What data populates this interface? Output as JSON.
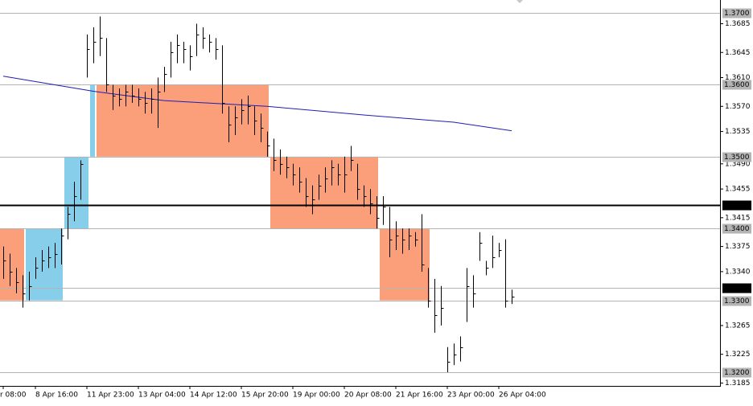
{
  "chart_data": {
    "type": "ohlc",
    "color": "#000000",
    "ylim": [
      1.3181,
      1.3718
    ],
    "yticks": [
      {
        "value": 1.3685,
        "label": "1.3685"
      },
      {
        "value": 1.3645,
        "label": "1.3645"
      },
      {
        "value": 1.361,
        "label": "1.3610"
      },
      {
        "value": 1.357,
        "label": "1.3570"
      },
      {
        "value": 1.3535,
        "label": "1.3535"
      },
      {
        "value": 1.349,
        "label": "1.3490"
      },
      {
        "value": 1.3455,
        "label": "1.3455"
      },
      {
        "value": 1.3415,
        "label": "1.3415"
      },
      {
        "value": 1.3375,
        "label": "1.3375"
      },
      {
        "value": 1.334,
        "label": "1.3340"
      },
      {
        "value": 1.3265,
        "label": "1.3265"
      },
      {
        "value": 1.3225,
        "label": "1.3225"
      },
      {
        "value": 1.3185,
        "label": "1.3185"
      }
    ],
    "levels": [
      {
        "value": 1.37,
        "label": "1.3700",
        "color": "#b4b4b4"
      },
      {
        "value": 1.36,
        "label": "1.3600",
        "color": "#b4b4b4"
      },
      {
        "value": 1.35,
        "label": "1.3500",
        "color": "#b4b4b4"
      },
      {
        "value": 1.34,
        "label": "1.3400",
        "color": "#b4b4b4"
      },
      {
        "value": 1.33,
        "label": "1.3300",
        "color": "#b4b4b4"
      },
      {
        "value": 1.32,
        "label": "1.3200",
        "color": "#b4b4b4"
      },
      {
        "value": 1.3318,
        "label": "1.3318",
        "color": "#000000"
      },
      {
        "value": 1.3433,
        "label": "1.3433",
        "color": "#000000"
      }
    ],
    "zones": [
      {
        "start": 0,
        "end": 4,
        "high": 1.34,
        "low": 1.33,
        "color": "#fa9f7a"
      },
      {
        "start": 4,
        "end": 10,
        "high": 1.34,
        "low": 1.33,
        "color": "#87ceeb"
      },
      {
        "start": 10,
        "end": 14,
        "high": 1.35,
        "low": 1.34,
        "color": "#87ceeb"
      },
      {
        "start": 14,
        "end": 15,
        "high": 1.36,
        "low": 1.35,
        "color": "#87ceeb"
      },
      {
        "start": 15,
        "end": 42,
        "high": 1.36,
        "low": 1.35,
        "color": "#fa9f7a"
      },
      {
        "start": 42,
        "end": 59,
        "high": 1.35,
        "low": 1.34,
        "color": "#fa9f7a"
      },
      {
        "start": 59,
        "end": 67,
        "high": 1.34,
        "low": 1.33,
        "color": "#fa9f7a"
      }
    ],
    "ma": {
      "color": "#1e1eb4",
      "x": [
        0,
        14,
        25,
        41,
        56,
        70,
        79
      ],
      "values": [
        1.3612,
        1.3591,
        1.3578,
        1.357,
        1.3558,
        1.3548,
        1.3536
      ]
    },
    "categories": [
      "r 08:00",
      null,
      null,
      null,
      null,
      "8 Apr 16:00",
      null,
      null,
      null,
      null,
      null,
      null,
      null,
      "11 Apr 23:00",
      null,
      null,
      null,
      null,
      null,
      null,
      null,
      "13 Apr 04:00",
      null,
      null,
      null,
      null,
      null,
      null,
      null,
      "14 Apr 12:00",
      null,
      null,
      null,
      null,
      null,
      null,
      null,
      "15 Apr 20:00",
      null,
      null,
      null,
      null,
      null,
      null,
      null,
      "19 Apr 00:00",
      null,
      null,
      null,
      null,
      null,
      null,
      null,
      "20 Apr 08:00",
      null,
      null,
      null,
      null,
      null,
      null,
      null,
      "21 Apr 16:00",
      null,
      null,
      null,
      null,
      null,
      null,
      null,
      "23 Apr 00:00",
      null,
      null,
      null,
      null,
      null,
      null,
      null,
      "26 Apr 04:00",
      null,
      null
    ],
    "high": [
      1.3375,
      1.3365,
      1.3345,
      1.3335,
      1.334,
      1.336,
      1.337,
      1.3375,
      1.338,
      1.34,
      1.343,
      1.3465,
      1.3495,
      1.367,
      1.368,
      1.3695,
      1.3665,
      1.36,
      1.3595,
      1.36,
      1.36,
      1.3595,
      1.359,
      1.3595,
      1.361,
      1.3625,
      1.366,
      1.367,
      1.366,
      1.3655,
      1.3685,
      1.368,
      1.367,
      1.3665,
      1.3655,
      1.357,
      1.357,
      1.358,
      1.3585,
      1.357,
      1.356,
      1.3535,
      1.3525,
      1.351,
      1.35,
      1.349,
      1.3485,
      1.347,
      1.346,
      1.3475,
      1.3485,
      1.3495,
      1.349,
      1.35,
      1.3515,
      1.349,
      1.346,
      1.3455,
      1.3445,
      1.3445,
      1.343,
      1.341,
      1.34,
      1.34,
      1.3395,
      1.342,
      1.3345,
      1.333,
      1.332,
      1.3235,
      1.324,
      1.325,
      1.3345,
      1.3335,
      1.3395,
      1.3355,
      1.339,
      1.338,
      1.3385,
      1.3315
    ],
    "low": [
      1.333,
      1.332,
      1.331,
      1.329,
      1.33,
      1.333,
      1.334,
      1.3345,
      1.3345,
      1.335,
      1.3385,
      1.341,
      1.344,
      1.361,
      1.363,
      1.364,
      1.359,
      1.3565,
      1.357,
      1.357,
      1.3575,
      1.357,
      1.356,
      1.356,
      1.354,
      1.359,
      1.361,
      1.363,
      1.363,
      1.362,
      1.364,
      1.365,
      1.3645,
      1.3635,
      1.356,
      1.352,
      1.353,
      1.3545,
      1.3545,
      1.353,
      1.352,
      1.35,
      1.348,
      1.3475,
      1.347,
      1.346,
      1.345,
      1.343,
      1.342,
      1.344,
      1.345,
      1.346,
      1.346,
      1.345,
      1.348,
      1.344,
      1.343,
      1.342,
      1.34,
      1.3405,
      1.336,
      1.337,
      1.3365,
      1.337,
      1.3375,
      1.334,
      1.329,
      1.3255,
      1.3265,
      1.32,
      1.321,
      1.3215,
      1.327,
      1.329,
      1.3355,
      1.3335,
      1.3345,
      1.336,
      1.329,
      1.3295
    ],
    "close": [
      1.3355,
      1.334,
      1.3325,
      1.331,
      1.332,
      1.3345,
      1.3355,
      1.336,
      1.3365,
      1.339,
      1.342,
      1.3445,
      1.349,
      1.365,
      1.366,
      1.3665,
      1.36,
      1.3585,
      1.358,
      1.359,
      1.3585,
      1.358,
      1.3575,
      1.358,
      1.359,
      1.3615,
      1.3645,
      1.3655,
      1.365,
      1.364,
      1.367,
      1.3665,
      1.366,
      1.365,
      1.3575,
      1.3545,
      1.3555,
      1.3565,
      1.357,
      1.355,
      1.354,
      1.3515,
      1.3495,
      1.349,
      1.3485,
      1.3475,
      1.3465,
      1.3445,
      1.344,
      1.346,
      1.347,
      1.3485,
      1.3475,
      1.3475,
      1.3495,
      1.3455,
      1.3445,
      1.3435,
      1.3415,
      1.343,
      1.3385,
      1.339,
      1.3385,
      1.339,
      1.3385,
      1.335,
      1.33,
      1.328,
      1.329,
      1.3215,
      1.3225,
      1.3235,
      1.332,
      1.331,
      1.338,
      1.3345,
      1.336,
      1.337,
      1.33,
      1.3305
    ]
  }
}
